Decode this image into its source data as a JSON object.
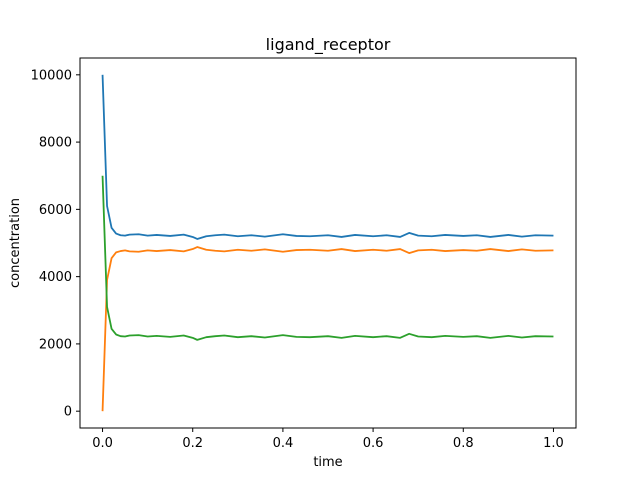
{
  "chart_data": {
    "type": "line",
    "title": "ligand_receptor",
    "xlabel": "time",
    "ylabel": "concentration",
    "xlim": [
      -0.05,
      1.05
    ],
    "ylim": [
      -500,
      10500
    ],
    "xticks": [
      0.0,
      0.2,
      0.4,
      0.6,
      0.8,
      1.0
    ],
    "xtick_labels": [
      "0.0",
      "0.2",
      "0.4",
      "0.6",
      "0.8",
      "1.0"
    ],
    "yticks": [
      0,
      2000,
      4000,
      6000,
      8000,
      10000
    ],
    "ytick_labels": [
      "0",
      "2000",
      "4000",
      "6000",
      "8000",
      "10000"
    ],
    "grid": false,
    "legend": false,
    "series": [
      {
        "color": "#1f77b4",
        "x": [
          0.0,
          0.01,
          0.02,
          0.03,
          0.04,
          0.05,
          0.06,
          0.08,
          0.1,
          0.12,
          0.15,
          0.18,
          0.2,
          0.21,
          0.23,
          0.25,
          0.27,
          0.3,
          0.33,
          0.36,
          0.4,
          0.43,
          0.46,
          0.5,
          0.53,
          0.56,
          0.6,
          0.63,
          0.66,
          0.68,
          0.7,
          0.73,
          0.76,
          0.8,
          0.83,
          0.86,
          0.9,
          0.93,
          0.96,
          1.0
        ],
        "y": [
          10000,
          6100,
          5450,
          5280,
          5230,
          5220,
          5250,
          5260,
          5220,
          5240,
          5210,
          5250,
          5180,
          5120,
          5200,
          5230,
          5250,
          5200,
          5230,
          5190,
          5260,
          5210,
          5200,
          5230,
          5180,
          5240,
          5200,
          5230,
          5180,
          5300,
          5220,
          5200,
          5240,
          5210,
          5230,
          5180,
          5240,
          5190,
          5230,
          5220
        ]
      },
      {
        "color": "#ff7f0e",
        "x": [
          0.0,
          0.01,
          0.02,
          0.03,
          0.04,
          0.05,
          0.06,
          0.08,
          0.1,
          0.12,
          0.15,
          0.18,
          0.2,
          0.21,
          0.23,
          0.25,
          0.27,
          0.3,
          0.33,
          0.36,
          0.4,
          0.43,
          0.46,
          0.5,
          0.53,
          0.56,
          0.6,
          0.63,
          0.66,
          0.68,
          0.7,
          0.73,
          0.76,
          0.8,
          0.83,
          0.86,
          0.9,
          0.93,
          0.96,
          1.0
        ],
        "y": [
          0,
          3900,
          4550,
          4720,
          4760,
          4780,
          4750,
          4740,
          4780,
          4760,
          4790,
          4750,
          4820,
          4880,
          4800,
          4770,
          4750,
          4800,
          4770,
          4810,
          4740,
          4790,
          4800,
          4770,
          4820,
          4760,
          4800,
          4770,
          4820,
          4700,
          4780,
          4800,
          4760,
          4790,
          4770,
          4820,
          4760,
          4810,
          4770,
          4780
        ]
      },
      {
        "color": "#2ca02c",
        "x": [
          0.0,
          0.01,
          0.02,
          0.03,
          0.04,
          0.05,
          0.06,
          0.08,
          0.1,
          0.12,
          0.15,
          0.18,
          0.2,
          0.21,
          0.23,
          0.25,
          0.27,
          0.3,
          0.33,
          0.36,
          0.4,
          0.43,
          0.46,
          0.5,
          0.53,
          0.56,
          0.6,
          0.63,
          0.66,
          0.68,
          0.7,
          0.73,
          0.76,
          0.8,
          0.83,
          0.86,
          0.9,
          0.93,
          0.96,
          1.0
        ],
        "y": [
          7000,
          3100,
          2450,
          2280,
          2230,
          2220,
          2250,
          2260,
          2220,
          2240,
          2210,
          2250,
          2180,
          2120,
          2200,
          2230,
          2250,
          2200,
          2230,
          2190,
          2260,
          2210,
          2200,
          2230,
          2180,
          2240,
          2200,
          2230,
          2180,
          2300,
          2220,
          2200,
          2240,
          2210,
          2230,
          2180,
          2240,
          2190,
          2230,
          2220
        ]
      }
    ]
  }
}
